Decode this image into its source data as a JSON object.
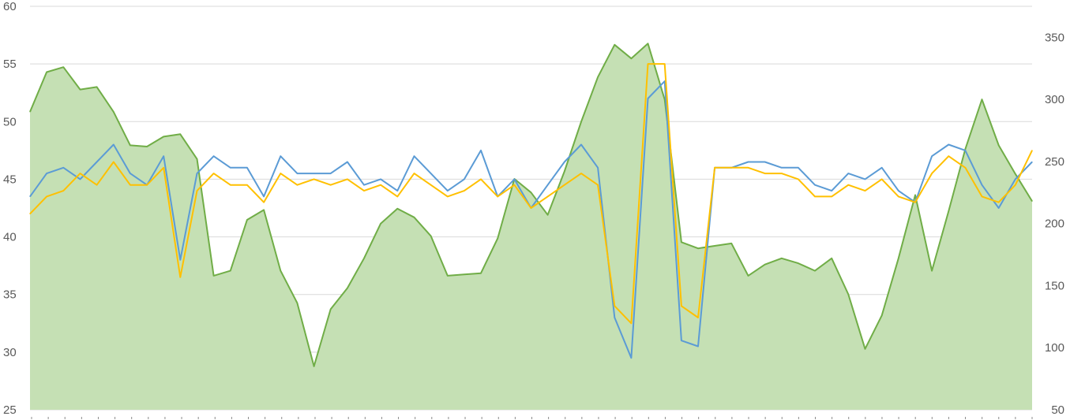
{
  "chart_data": {
    "type": "line",
    "title": "",
    "grid": true,
    "legend": "none",
    "y_left": {
      "ylim": [
        25,
        60
      ],
      "ticks": [
        "25",
        "30",
        "35",
        "40",
        "45",
        "50",
        "55",
        "60"
      ]
    },
    "y_right": {
      "ylim": [
        50,
        375
      ],
      "ticks": [
        "50",
        "100",
        "150",
        "200",
        "250",
        "300",
        "350"
      ]
    },
    "x_points": 61,
    "series": [
      {
        "type": "area",
        "axis": "right",
        "color": "#70ad47",
        "fill": "#c5e0b4",
        "values": [
          290,
          322,
          326,
          308,
          310,
          290,
          263,
          262,
          270,
          272,
          252,
          158,
          162,
          203,
          211,
          162,
          136,
          85,
          131,
          148,
          172,
          200,
          212,
          205,
          190,
          158,
          159,
          160,
          188,
          236,
          225,
          207,
          242,
          282,
          318,
          344,
          333,
          345,
          300,
          185,
          180,
          182,
          184,
          158,
          167,
          172,
          168,
          162,
          172,
          143,
          99,
          126,
          172,
          223,
          162,
          210,
          260,
          300,
          263,
          240,
          218
        ]
      },
      {
        "type": "line",
        "axis": "left",
        "color": "#5b9bd5",
        "values": [
          43.5,
          45.5,
          46,
          45,
          46.5,
          48,
          45.5,
          44.5,
          47,
          38,
          45.5,
          47,
          46,
          46,
          43.5,
          47,
          45.5,
          45.5,
          45.5,
          46.5,
          44.5,
          45,
          44,
          47,
          45.5,
          44,
          45,
          47.5,
          43.5,
          45,
          42.5,
          44.5,
          46.5,
          48,
          46,
          33,
          29.5,
          52,
          53.5,
          31,
          30.5,
          46,
          46,
          46.5,
          46.5,
          46,
          46,
          44.5,
          44,
          45.5,
          45,
          46,
          44,
          43,
          47,
          48,
          47.5,
          44.5,
          42.5,
          45,
          46.5
        ]
      },
      {
        "type": "line",
        "axis": "left",
        "color": "#ffc000",
        "values": [
          42,
          43.5,
          44,
          45.5,
          44.5,
          46.5,
          44.5,
          44.5,
          46,
          36.5,
          44,
          45.5,
          44.5,
          44.5,
          43,
          45.5,
          44.5,
          45,
          44.5,
          45,
          44,
          44.5,
          43.5,
          45.5,
          44.5,
          43.5,
          44,
          45,
          43.5,
          44.5,
          42.5,
          43.5,
          44.5,
          45.5,
          44.5,
          34,
          32.5,
          55,
          55,
          34,
          33,
          46,
          46,
          46,
          45.5,
          45.5,
          45,
          43.5,
          43.5,
          44.5,
          44,
          45,
          43.5,
          43,
          45.5,
          47,
          46,
          43.5,
          43,
          44.5,
          47.5
        ]
      }
    ]
  }
}
